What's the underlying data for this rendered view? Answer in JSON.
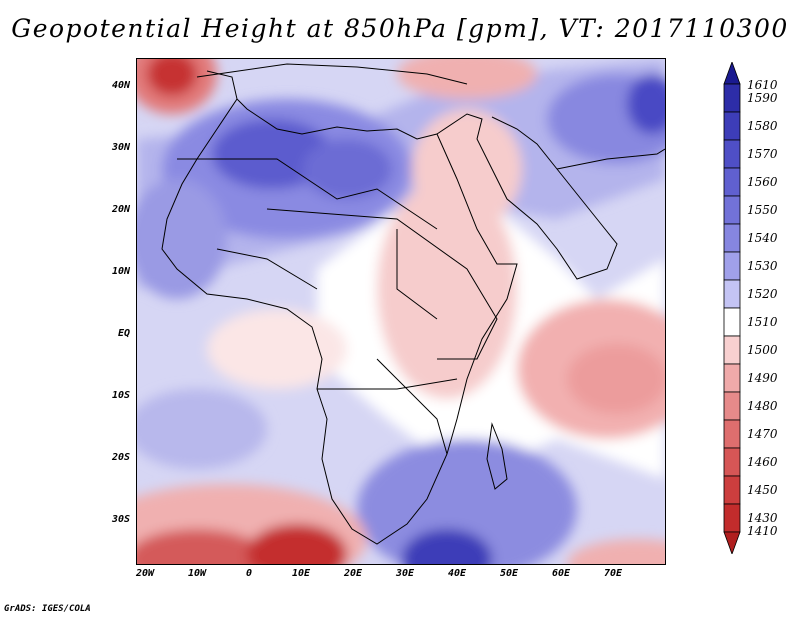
{
  "title": "Geopotential Height at 850hPa [gpm], VT: 2017110300",
  "credit": "GrADS: IGES/COLA",
  "map": {
    "lat_labels": [
      "40N",
      "30N",
      "20N",
      "10N",
      "EQ",
      "10S",
      "20S",
      "30S"
    ],
    "lon_labels": [
      "20W",
      "10W",
      "0",
      "10E",
      "20E",
      "30E",
      "40E",
      "50E",
      "60E",
      "70E"
    ]
  },
  "colorbar": {
    "levels": [
      "1610",
      "1590",
      "1580",
      "1570",
      "1560",
      "1550",
      "1540",
      "1530",
      "1520",
      "1510",
      "1500",
      "1490",
      "1480",
      "1470",
      "1460",
      "1450",
      "1430",
      "1410"
    ],
    "colors": [
      "#1a1a90",
      "#2d2da8",
      "#3d3db8",
      "#4f4fc6",
      "#6060d0",
      "#7272d8",
      "#8686e0",
      "#a0a0ea",
      "#c4c4f4",
      "#ffffff",
      "#f8d0d0",
      "#f0aaaa",
      "#e68a8a",
      "#de6e6e",
      "#d65656",
      "#cc3e3e",
      "#c22c2c",
      "#b01e1e"
    ]
  }
}
